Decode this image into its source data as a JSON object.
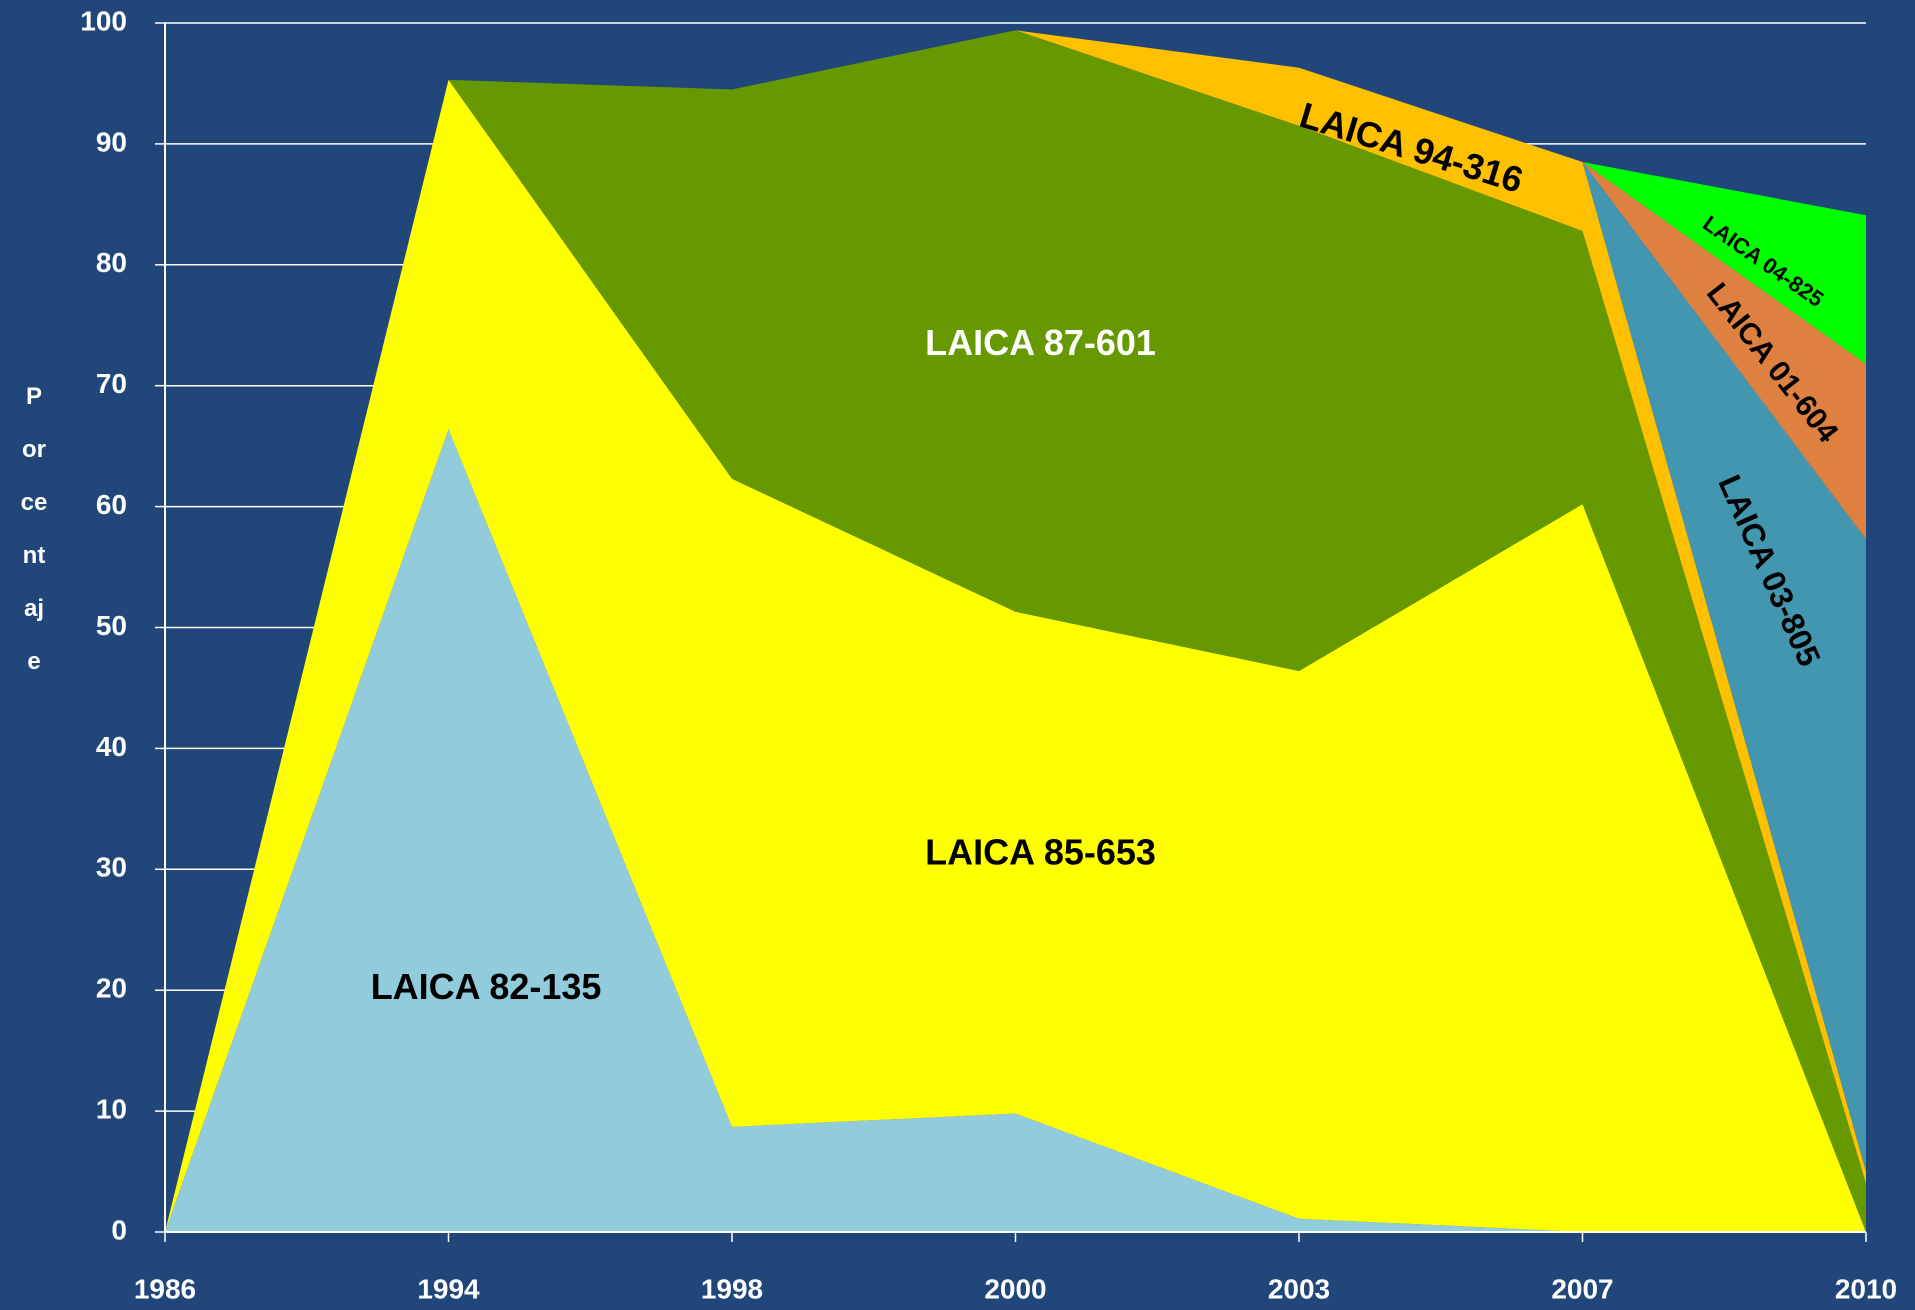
{
  "chart_data": {
    "type": "stacked_area",
    "y_label": "Porcentaje",
    "categories": [
      "1986",
      "1994",
      "1998",
      "2000",
      "2003",
      "2007",
      "2010"
    ],
    "ylim": [
      0,
      100
    ],
    "yticks": [
      0,
      10,
      20,
      30,
      40,
      50,
      60,
      70,
      80,
      90,
      100
    ],
    "grid": true,
    "series": [
      {
        "name": "LAICA 82-135",
        "color": "#92cbdc",
        "values": [
          0,
          66.4,
          8.7,
          9.8,
          1.1,
          0,
          0
        ]
      },
      {
        "name": "LAICA 85-653",
        "color": "#ffff00",
        "values": [
          0,
          28.9,
          53.6,
          41.5,
          45.3,
          60.2,
          0
        ]
      },
      {
        "name": "LAICA 87-601",
        "color": "#669900",
        "values": [
          0,
          0,
          32.2,
          48.1,
          45.1,
          22.6,
          4
        ]
      },
      {
        "name": "LAICA 94-316",
        "color": "#ffc000",
        "values": [
          0,
          0,
          0,
          0,
          4.8,
          5.7,
          1
        ]
      },
      {
        "name": "LAICA 03-805",
        "color": "#4396b0",
        "values": [
          0,
          0,
          0,
          0,
          0,
          0,
          52.3
        ]
      },
      {
        "name": "LAICA 01-604",
        "color": "#dd8040",
        "values": [
          0,
          0,
          0,
          0,
          0,
          0,
          14.5
        ]
      },
      {
        "name": "LAICA 04-825",
        "color": "#00ff00",
        "values": [
          0,
          0,
          0,
          0,
          0,
          0,
          12.3
        ]
      }
    ]
  }
}
